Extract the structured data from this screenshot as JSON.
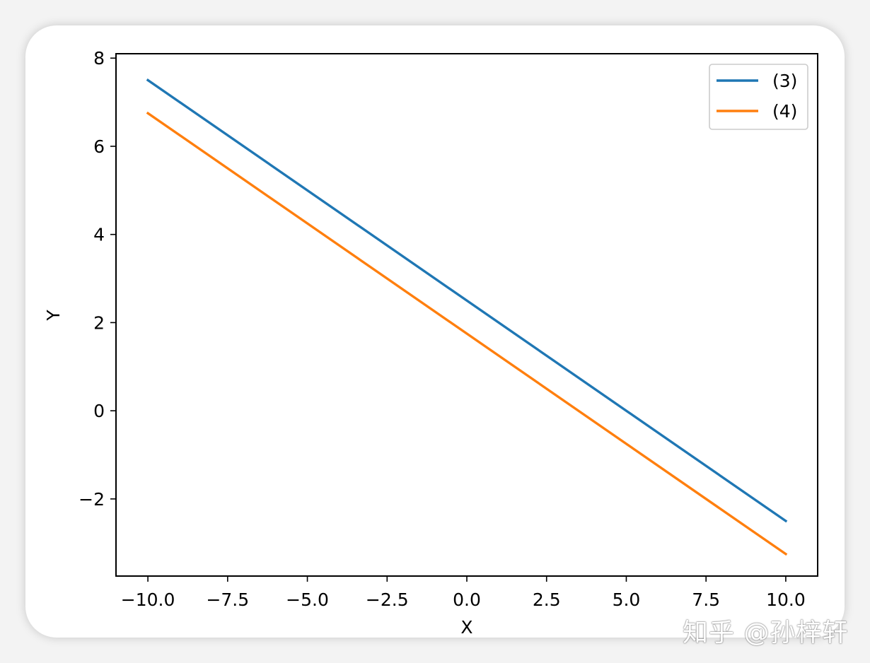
{
  "watermark": "知乎 @孙梓轩",
  "chart_data": {
    "type": "line",
    "xlabel": "X",
    "ylabel": "Y",
    "xlim": [
      -11,
      11
    ],
    "ylim": [
      -3.75,
      8.1
    ],
    "xticks": [
      -10.0,
      -7.5,
      -5.0,
      -2.5,
      0.0,
      2.5,
      5.0,
      7.5,
      10.0
    ],
    "xtick_labels": [
      "−10.0",
      "−7.5",
      "−5.0",
      "−2.5",
      "0.0",
      "2.5",
      "5.0",
      "7.5",
      "10.0"
    ],
    "yticks": [
      -2,
      0,
      2,
      4,
      6,
      8
    ],
    "ytick_labels": [
      "−2",
      "0",
      "2",
      "4",
      "6",
      "8"
    ],
    "grid": false,
    "legend_position": "upper right",
    "series": [
      {
        "name": "(3)",
        "color": "#1f77b4",
        "x": [
          -10,
          10
        ],
        "y": [
          7.5,
          -2.5
        ]
      },
      {
        "name": "(4)",
        "color": "#ff7f0e",
        "x": [
          -10,
          10
        ],
        "y": [
          6.75,
          -3.25
        ]
      }
    ]
  }
}
